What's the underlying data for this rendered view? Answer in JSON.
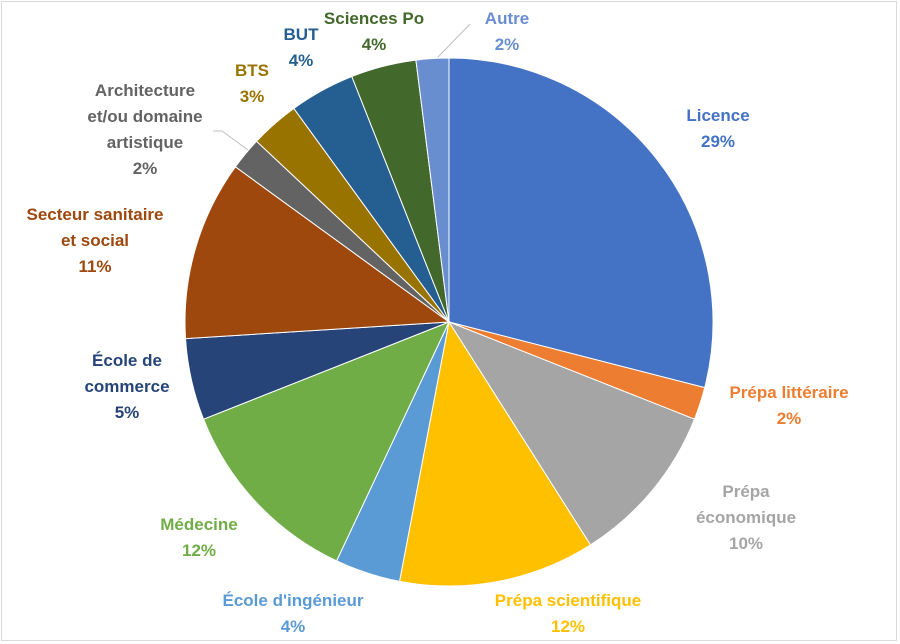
{
  "chart_data": {
    "type": "pie",
    "title": "",
    "legend": "none",
    "slices": [
      {
        "label_lines": [
          "Licence"
        ],
        "value_label": "29%",
        "value": 29,
        "color": "#4472C4"
      },
      {
        "label_lines": [
          "Prépa littéraire"
        ],
        "value_label": "2%",
        "value": 2,
        "color": "#ED7D31"
      },
      {
        "label_lines": [
          "Prépa",
          "économique"
        ],
        "value_label": "10%",
        "value": 10,
        "color": "#A5A5A5"
      },
      {
        "label_lines": [
          "Prépa scientifique"
        ],
        "value_label": "12%",
        "value": 12,
        "color": "#FFC000"
      },
      {
        "label_lines": [
          "École d'ingénieur"
        ],
        "value_label": "4%",
        "value": 4,
        "color": "#5B9BD5"
      },
      {
        "label_lines": [
          "Médecine"
        ],
        "value_label": "12%",
        "value": 12,
        "color": "#70AD47"
      },
      {
        "label_lines": [
          "École de",
          "commerce"
        ],
        "value_label": "5%",
        "value": 5,
        "color": "#264478"
      },
      {
        "label_lines": [
          "Secteur sanitaire",
          "et social"
        ],
        "value_label": "11%",
        "value": 11,
        "color": "#9E480E"
      },
      {
        "label_lines": [
          "Architecture",
          "et/ou domaine",
          "artistique"
        ],
        "value_label": "2%",
        "value": 2,
        "color": "#636363"
      },
      {
        "label_lines": [
          "BTS"
        ],
        "value_label": "3%",
        "value": 3,
        "color": "#997300"
      },
      {
        "label_lines": [
          "BUT"
        ],
        "value_label": "4%",
        "value": 4,
        "color": "#255E91"
      },
      {
        "label_lines": [
          "Sciences Po"
        ],
        "value_label": "4%",
        "value": 4,
        "color": "#43682B"
      },
      {
        "label_lines": [
          "Autre"
        ],
        "value_label": "2%",
        "value": 2,
        "color": "#698ED0"
      }
    ]
  }
}
